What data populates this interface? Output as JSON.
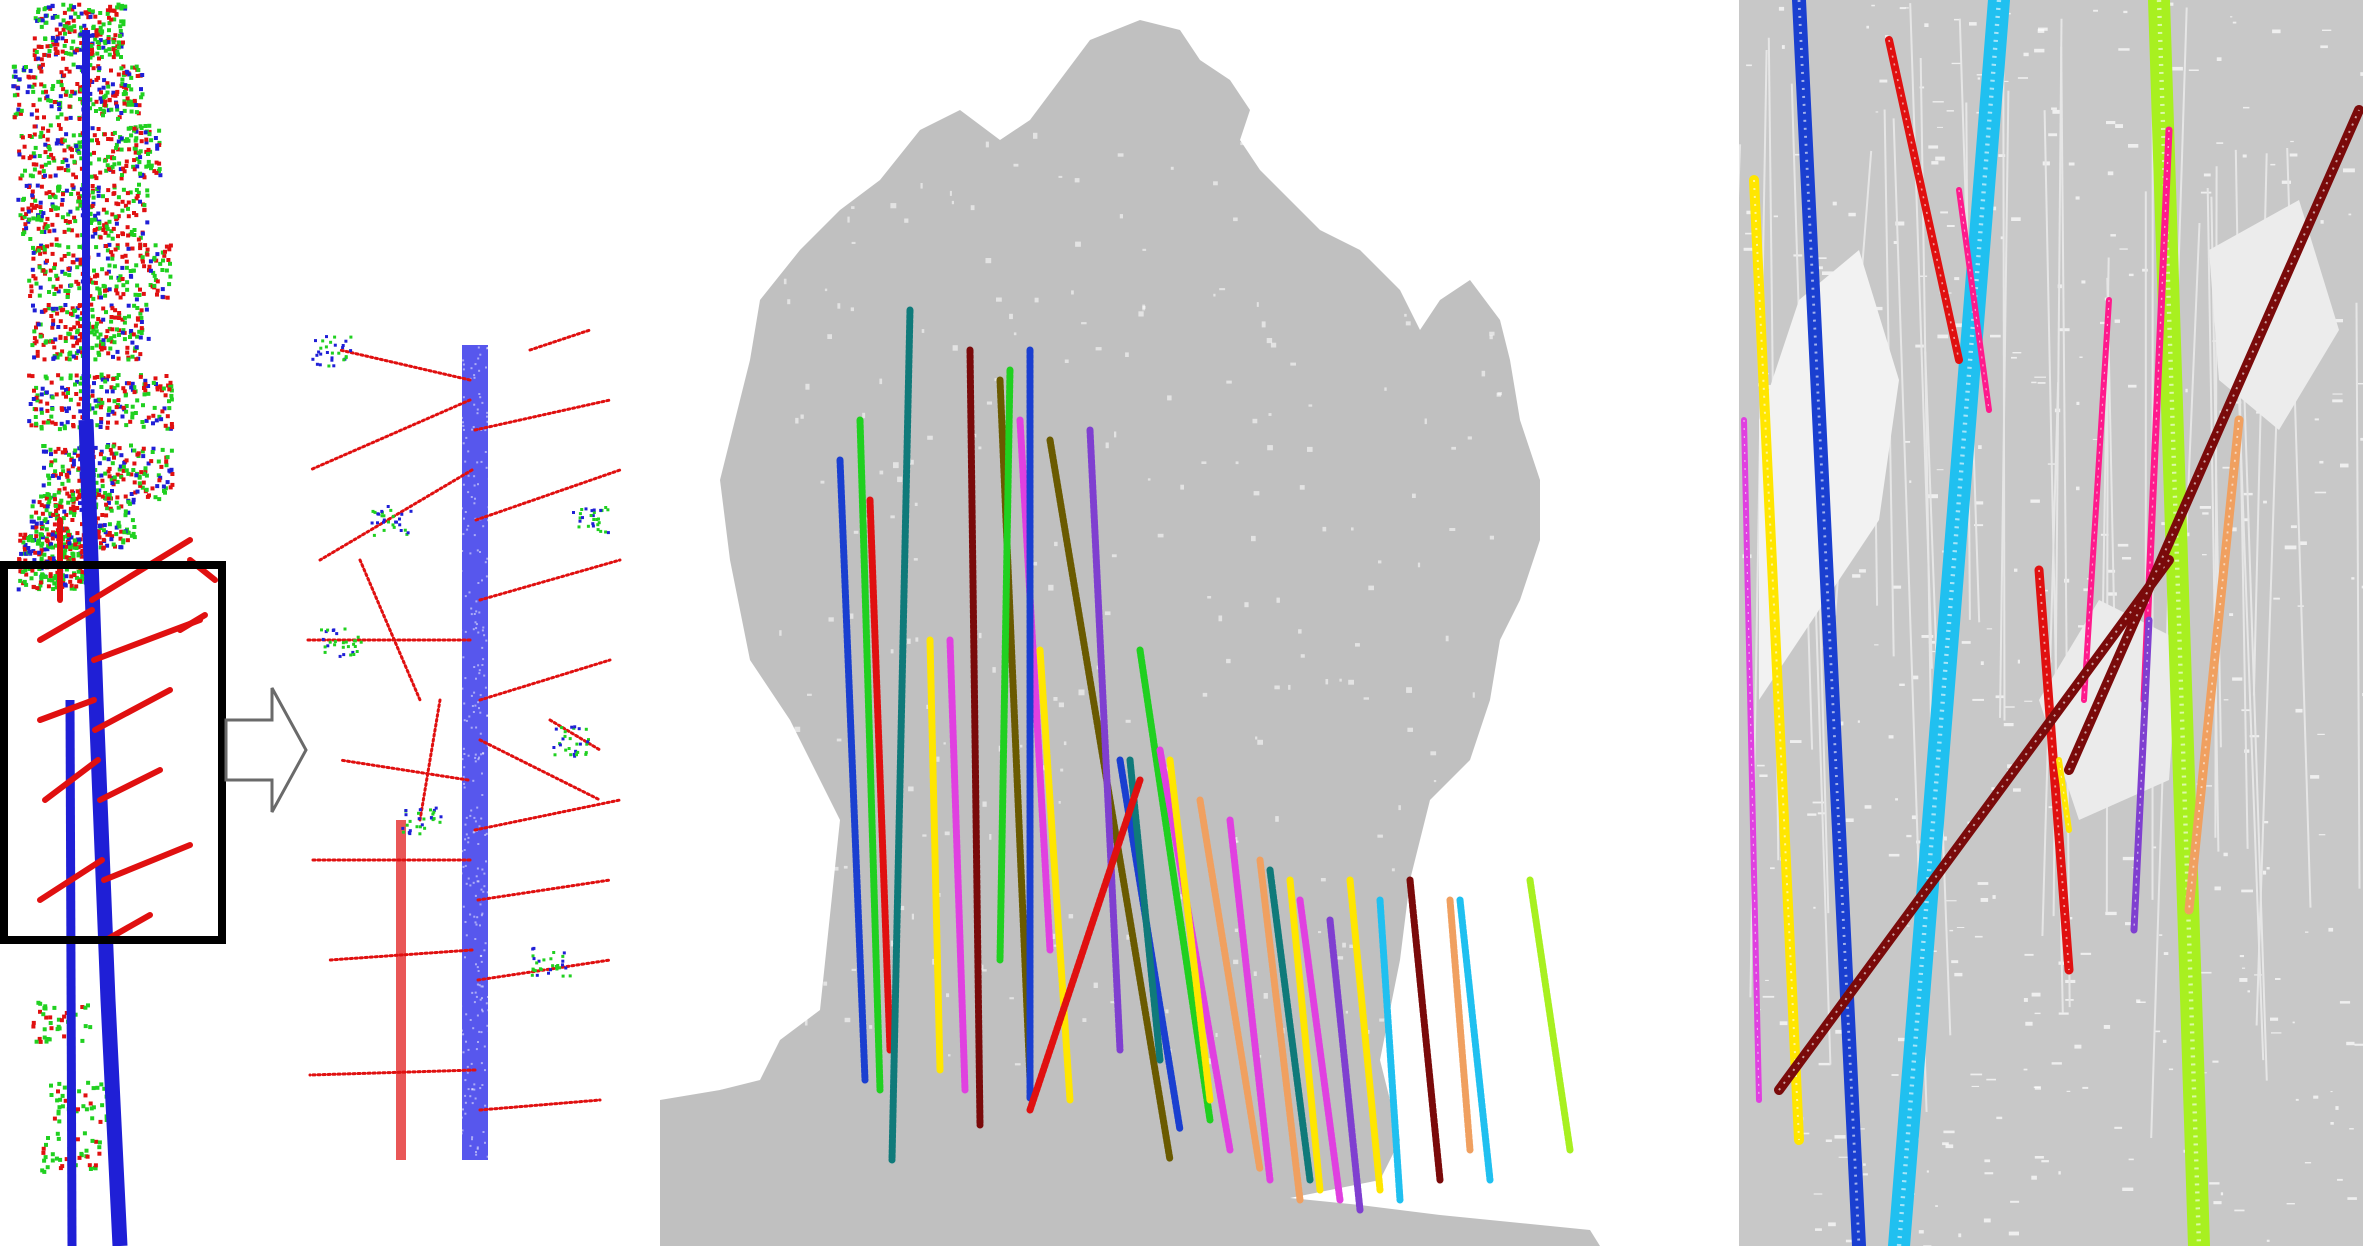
{
  "figure": {
    "panels": [
      {
        "id": "single-tree-point-cloud",
        "label": ""
      },
      {
        "id": "zoomed-branch-detail",
        "label": ""
      },
      {
        "id": "forest-plot-stem-detection",
        "label": ""
      },
      {
        "id": "forest-closeup-stems",
        "label": ""
      }
    ]
  },
  "colors": {
    "background": "#ffffff",
    "canopy_gray": "#c0c0c0",
    "stem_blue": "#1f1fd6",
    "branch_red": "#e01010",
    "leaf_green": "#20d020",
    "frame_black": "#000000",
    "arrow_outline": "#6a6a6a",
    "stem_palette": [
      "#1a3fd0",
      "#0f7a7a",
      "#e01010",
      "#20d020",
      "#ffe600",
      "#e040e0",
      "#7a0a0a",
      "#6a5a00",
      "#7f3fd0",
      "#f0a060",
      "#ff1a8c",
      "#20c0f0",
      "#a8f020"
    ]
  }
}
